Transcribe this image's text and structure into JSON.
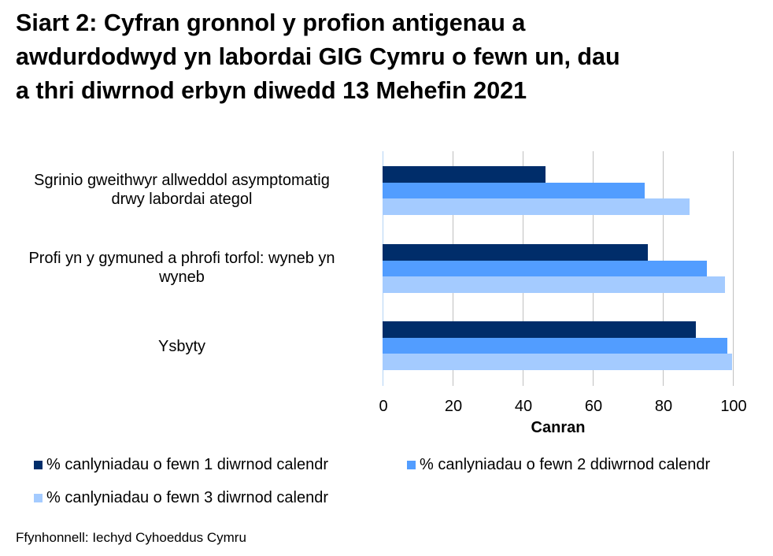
{
  "title_lines": [
    "Siart 2: Cyfran gronnol y profion antigenau a",
    "awdurdodwyd yn labordai GIG Cymru o fewn un, dau",
    "a thri diwrnod erbyn diwedd 13 Mehefin 2021"
  ],
  "x_axis": {
    "label": "Canran",
    "ticks": [
      "0",
      "20",
      "40",
      "60",
      "80",
      "100"
    ]
  },
  "categories": [
    {
      "line1": "Sgrinio gweithwyr allweddol asymptomatig",
      "line2": "drwy labordai ategol"
    },
    {
      "line1": "Profi yn y gymuned a phrofi torfol: wyneb yn",
      "line2": "wyneb"
    },
    {
      "line1": "Ysbyty",
      "line2": ""
    }
  ],
  "legend": [
    {
      "label": "% canlyniadau o fewn 1 diwrnod calendr",
      "color": "#002d6a"
    },
    {
      "label": "% canlyniadau o fewn 2 ddiwrnod calendr",
      "color": "#529dff"
    },
    {
      "label": "% canlyniadau o fewn 3 diwrnod calendr",
      "color": "#a4cbff"
    }
  ],
  "source": "Ffynhonnell: Iechyd Cyhoeddus Cymru",
  "chart_data": {
    "type": "bar",
    "orientation": "horizontal",
    "title": "Siart 2: Cyfran gronnol y profion antigenau a awdurdodwyd yn labordai GIG Cymru o fewn un, dau a thri diwrnod erbyn diwedd 13 Mehefin 2021",
    "categories": [
      "Sgrinio gweithwyr allweddol asymptomatig drwy labordai ategol",
      "Profi yn y gymuned a phrofi torfol: wyneb yn wyneb",
      "Ysbyty"
    ],
    "series": [
      {
        "name": "% canlyniadau o fewn 1 diwrnod calendr",
        "color": "#002d6a",
        "values": [
          46.6,
          75.7,
          89.4
        ]
      },
      {
        "name": "% canlyniadau o fewn 2 ddiwrnod calendr",
        "color": "#529dff",
        "values": [
          74.8,
          92.5,
          98.4
        ]
      },
      {
        "name": "% canlyniadau o fewn 3 diwrnod calendr",
        "color": "#a4cbff",
        "values": [
          87.6,
          97.7,
          99.8
        ]
      }
    ],
    "xlabel": "Canran",
    "ylabel": "",
    "xlim": [
      0,
      100
    ],
    "xticks": [
      0,
      20,
      40,
      60,
      80,
      100
    ],
    "grid": "vertical",
    "legend_position": "bottom",
    "source": "Ffynhonnell: Iechyd Cyhoeddus Cymru"
  }
}
